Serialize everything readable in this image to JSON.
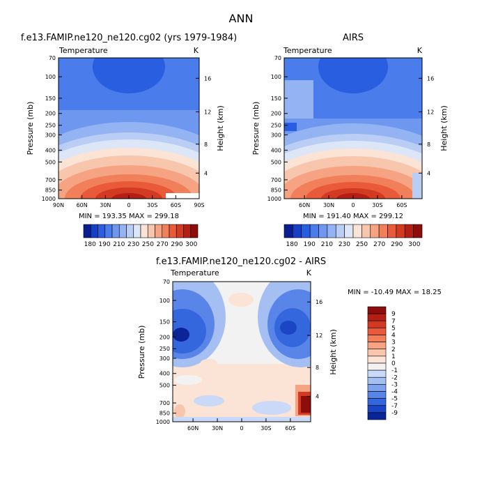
{
  "figure": {
    "main_title": "ANN",
    "panel1_title": "f.e13.FAMIP.ne120_ne120.cg02 (yrs 1979-1984)",
    "panel2_title": "AIRS",
    "panel3_title": "f.e13.FAMIP.ne120_ne120.cg02 - AIRS"
  },
  "chart_data": [
    {
      "type": "heatmap",
      "title": "f.e13.FAMIP.ne120_ne120.cg02 (yrs 1979-1984)",
      "left_string": "Temperature",
      "right_string": "K",
      "ylabel": "Pressure (mb)",
      "ylabel_right": "Height (km)",
      "x_ticks": [
        "90N",
        "60N",
        "30N",
        "0",
        "30S",
        "60S",
        "90S"
      ],
      "y_ticks": [
        "70",
        "100",
        "150",
        "200",
        "250",
        "300",
        "400",
        "500",
        "700",
        "850",
        "1000"
      ],
      "y_ticks_right": [
        "16",
        "12",
        "8",
        "4"
      ],
      "ylim": [
        1000,
        70
      ],
      "xlim": [
        90,
        -90
      ],
      "stats_text": "MIN = 193.35   MAX = 299.18",
      "min": 193.35,
      "max": 299.18,
      "colorbar_labels": [
        "180",
        "190",
        "210",
        "230",
        "250",
        "270",
        "290",
        "300"
      ],
      "colorbar_colors": [
        "#0a1f8f",
        "#1740c8",
        "#2a5ee0",
        "#4a7cec",
        "#6e98f0",
        "#93b3f2",
        "#b9cdf5",
        "#dde6f7",
        "#fbe3d6",
        "#f8c6ad",
        "#f5a382",
        "#f17f5a",
        "#e85a3a",
        "#d33a22",
        "#b31f14",
        "#8c0d0a"
      ]
    },
    {
      "type": "heatmap",
      "title": "AIRS",
      "left_string": "Temperature",
      "right_string": "K",
      "ylabel": "Pressure (mb)",
      "ylabel_right": "Height (km)",
      "x_ticks": [
        "60N",
        "30N",
        "0",
        "30S",
        "60S"
      ],
      "y_ticks": [
        "70",
        "100",
        "150",
        "200",
        "250",
        "300",
        "400",
        "500",
        "700",
        "850",
        "1000"
      ],
      "y_ticks_right": [
        "16",
        "12",
        "8",
        "4"
      ],
      "ylim": [
        1000,
        70
      ],
      "stats_text": "MIN = 191.40   MAX = 299.12",
      "min": 191.4,
      "max": 299.12,
      "colorbar_labels": [
        "180",
        "190",
        "210",
        "230",
        "250",
        "270",
        "290",
        "300"
      ],
      "colorbar_colors": [
        "#0a1f8f",
        "#1740c8",
        "#2a5ee0",
        "#4a7cec",
        "#6e98f0",
        "#93b3f2",
        "#b9cdf5",
        "#dde6f7",
        "#fbe3d6",
        "#f8c6ad",
        "#f5a382",
        "#f17f5a",
        "#e85a3a",
        "#d33a22",
        "#b31f14",
        "#8c0d0a"
      ]
    },
    {
      "type": "heatmap",
      "title": "f.e13.FAMIP.ne120_ne120.cg02 - AIRS",
      "left_string": "Temperature",
      "right_string": "K",
      "ylabel": "Pressure (mb)",
      "ylabel_right": "Height (km)",
      "x_ticks": [
        "60N",
        "30N",
        "0",
        "30S",
        "60S"
      ],
      "y_ticks": [
        "70",
        "100",
        "150",
        "200",
        "250",
        "300",
        "400",
        "500",
        "700",
        "850",
        "1000"
      ],
      "y_ticks_right": [
        "16",
        "12",
        "8",
        "4"
      ],
      "ylim": [
        1000,
        70
      ],
      "stats_text": "MIN = -10.49   MAX =  18.25",
      "min": -10.49,
      "max": 18.25,
      "colorbar_labels": [
        "9",
        "7",
        "5",
        "4",
        "3",
        "2",
        "1",
        "0",
        "-1",
        "-2",
        "-3",
        "-4",
        "-5",
        "-7",
        "-9"
      ],
      "colorbar_colors": [
        "#8c0d0a",
        "#b31f14",
        "#d33a22",
        "#e85a3a",
        "#f17f5a",
        "#f5a382",
        "#f8c6ad",
        "#fbe3d6",
        "#f2f2f2",
        "#c9d9f7",
        "#a6bff3",
        "#7fa2ee",
        "#5a85e8",
        "#3466dd",
        "#1a45c4",
        "#0c2596"
      ]
    }
  ]
}
